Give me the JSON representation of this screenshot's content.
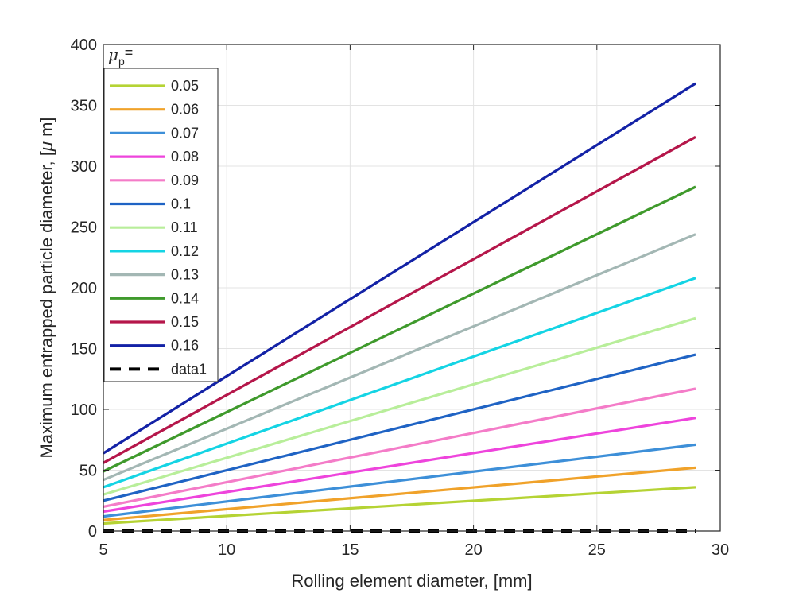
{
  "chart_data": {
    "type": "line",
    "title": "",
    "xlabel": "Rolling element diameter, [mm]",
    "ylabel": "Maximum entrapped particle diameter, [μ m]",
    "ylabel_parts": {
      "prefix": "Maximum entrapped particle diameter, [",
      "mu": "μ",
      "suffix": " m]"
    },
    "xlim": [
      5,
      30
    ],
    "ylim": [
      0,
      400
    ],
    "xticks": [
      5,
      10,
      15,
      20,
      25,
      30
    ],
    "yticks": [
      0,
      50,
      100,
      150,
      200,
      250,
      300,
      350,
      400
    ],
    "grid": true,
    "legend": {
      "placement": "top-left",
      "title_symbol": "μ",
      "title_subscript": "p",
      "title_suffix": "="
    },
    "series": [
      {
        "name": "0.05",
        "color": "#b5d334",
        "x": [
          5,
          29
        ],
        "y": [
          6.2,
          36
        ]
      },
      {
        "name": "0.06",
        "color": "#f0a22a",
        "x": [
          5,
          29
        ],
        "y": [
          9,
          52
        ]
      },
      {
        "name": "0.07",
        "color": "#3d8fd8",
        "x": [
          5,
          29
        ],
        "y": [
          12,
          71
        ]
      },
      {
        "name": "0.08",
        "color": "#ee44dc",
        "x": [
          5,
          29
        ],
        "y": [
          16,
          93
        ]
      },
      {
        "name": "0.09",
        "color": "#f47cc8",
        "x": [
          5,
          29
        ],
        "y": [
          20,
          117
        ]
      },
      {
        "name": "0.1",
        "color": "#1f63c4",
        "x": [
          5,
          29
        ],
        "y": [
          25,
          145
        ]
      },
      {
        "name": "0.11",
        "color": "#b8ee9a",
        "x": [
          5,
          29
        ],
        "y": [
          30,
          175
        ]
      },
      {
        "name": "0.12",
        "color": "#14d4e4",
        "x": [
          5,
          29
        ],
        "y": [
          36,
          208
        ]
      },
      {
        "name": "0.13",
        "color": "#a3b7b4",
        "x": [
          5,
          29
        ],
        "y": [
          42,
          244
        ]
      },
      {
        "name": "0.14",
        "color": "#3f9a2c",
        "x": [
          5,
          29
        ],
        "y": [
          49,
          283
        ]
      },
      {
        "name": "0.15",
        "color": "#b5164a",
        "x": [
          5,
          29
        ],
        "y": [
          56,
          324
        ]
      },
      {
        "name": "0.16",
        "color": "#1322a6",
        "x": [
          5,
          29
        ],
        "y": [
          64,
          368
        ]
      },
      {
        "name": "data1",
        "color": "#000000",
        "dashed": true,
        "x": [
          5,
          29
        ],
        "y": [
          0,
          0
        ]
      }
    ]
  }
}
